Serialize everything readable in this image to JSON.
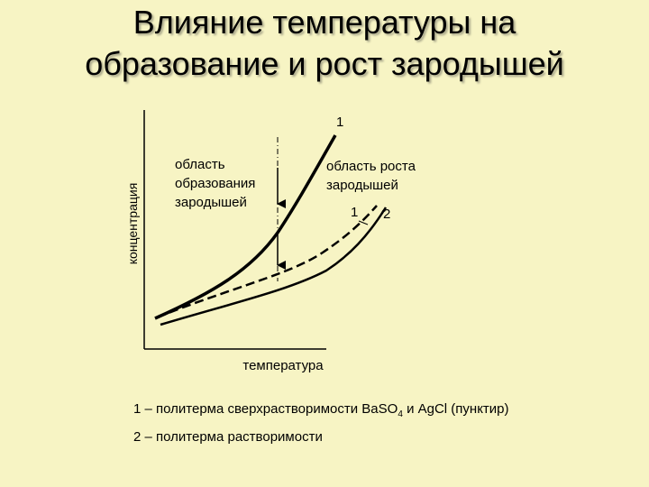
{
  "slide": {
    "title_line1": "Влияние температуры на",
    "title_line2": "образование и рост зародышей"
  },
  "diagram": {
    "y_axis_label": "концентрация",
    "x_axis_label": "температура",
    "top_curve_label": "1",
    "region_nucleation": [
      "область",
      "образования",
      "зародышей"
    ],
    "region_growth": [
      "область роста",
      "зародышей"
    ],
    "curve1_label": "1",
    "curve2_label": "2"
  },
  "legend": {
    "item1_prefix": "1 – политерма сверхрастворимости Ba",
    "item1_so": "SO",
    "item1_sub": "4",
    "item1_suffix": " и AgCl (пунктир)",
    "item2": "2 – политерма растворимости"
  },
  "colors": {
    "background": "#f7f4c4",
    "line": "#000000"
  }
}
